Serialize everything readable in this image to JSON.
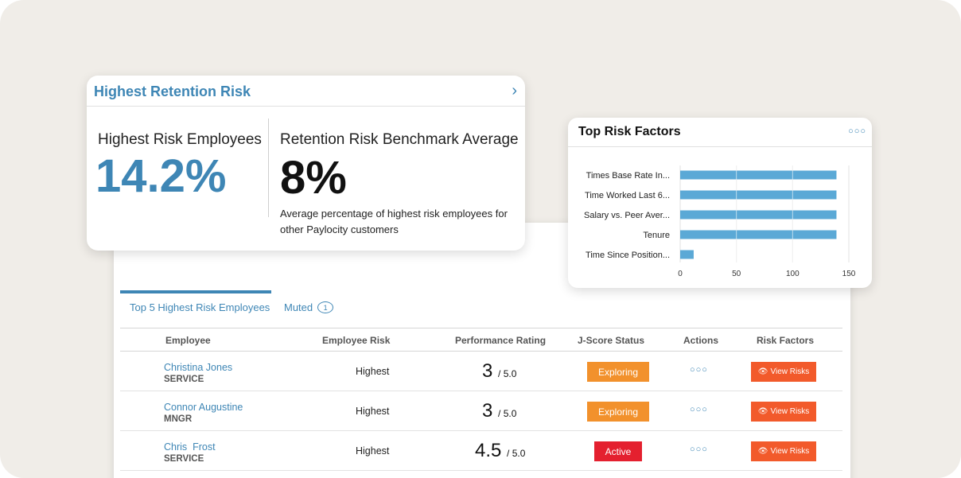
{
  "retention": {
    "title": "Highest Retention Risk",
    "highest_label": "Highest Risk Employees",
    "highest_value": "14.2%",
    "benchmark_label": "Retention Risk Benchmark Average",
    "benchmark_value": "8%",
    "benchmark_desc": "Average percentage of highest risk employees for other Paylocity customers"
  },
  "risk_factors": {
    "title": "Top Risk Factors"
  },
  "chart_data": {
    "type": "bar",
    "orientation": "horizontal",
    "categories": [
      "Times Base Rate In...",
      "Time Worked Last 6...",
      "Salary vs. Peer Aver...",
      "Tenure",
      "Time Since Position..."
    ],
    "values": [
      139,
      139,
      139,
      139,
      12
    ],
    "xticks": [
      0,
      50,
      100,
      150
    ],
    "xlim": [
      0,
      150
    ],
    "grid": true,
    "bar_color": "#5ba9d6"
  },
  "tabs": {
    "top5": "Top 5 Highest Risk Employees",
    "muted": "Muted",
    "muted_count": "1"
  },
  "table": {
    "headers": [
      "Employee",
      "Employee Risk",
      "Performance Rating",
      "J-Score Status",
      "Actions",
      "Risk Factors"
    ],
    "rows": [
      {
        "name": "Christina Jones",
        "dept": "SERVICE",
        "risk": "Highest",
        "perf": "3",
        "perf_max": "/ 5.0",
        "status": "Exploring",
        "action": "View Risks"
      },
      {
        "name": "Connor Augustine",
        "dept": "MNGR",
        "risk": "Highest",
        "perf": "3",
        "perf_max": "/ 5.0",
        "status": "Exploring",
        "action": "View Risks"
      },
      {
        "name": "Chris  Frost",
        "dept": "SERVICE",
        "risk": "Highest",
        "perf": "4.5",
        "perf_max": "/ 5.0",
        "status": "Active",
        "action": "View Risks"
      }
    ]
  },
  "colors": {
    "accent": "#3e86b5",
    "exploring": "#f2912c",
    "active": "#e4202f",
    "view_risks": "#f25a2b"
  }
}
